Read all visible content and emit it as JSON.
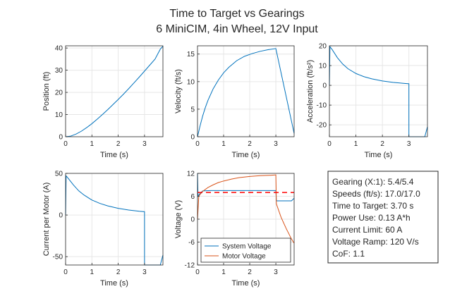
{
  "figure": {
    "title_line1": "Time to Target vs Gearings",
    "title_line2": "6 MiniCIM, 4in Wheel, 12V Input"
  },
  "colors": {
    "series_blue": "#0072BD",
    "series_orange": "#D95319",
    "reference_red": "#FF0000",
    "grid": "#E6E6E6",
    "axis": "#262626"
  },
  "info_box": {
    "lines": [
      "Gearing (X:1): 5.4/5.4",
      "Speeds (ft/s): 17.0/17.0",
      "Time to Target: 3.70 s",
      "Power Use: 0.13 A*h",
      "Current Limit: 60 A",
      "Voltage Ramp: 120 V/s",
      "CoF: 1.1"
    ]
  },
  "chart_data": [
    {
      "id": "position",
      "type": "line",
      "xlabel": "Time (s)",
      "ylabel": "Position (ft)",
      "xlim": [
        0,
        3.7
      ],
      "ylim": [
        0,
        41
      ],
      "xticks": [
        0,
        1,
        2,
        3
      ],
      "yticks": [
        0,
        10,
        20,
        30,
        40
      ],
      "grid": true,
      "series": [
        {
          "color": "series_blue",
          "x": [
            0,
            0.2,
            0.4,
            0.6,
            0.8,
            1.0,
            1.2,
            1.4,
            1.6,
            1.8,
            2.0,
            2.2,
            2.4,
            2.6,
            2.8,
            3.0,
            3.2,
            3.4,
            3.6,
            3.7
          ],
          "y": [
            0,
            0.3,
            1.2,
            2.5,
            4.1,
            5.9,
            7.9,
            10.0,
            12.2,
            14.5,
            16.8,
            19.2,
            21.7,
            24.3,
            26.9,
            29.6,
            32.3,
            35.0,
            39.5,
            40.8
          ]
        }
      ]
    },
    {
      "id": "velocity",
      "type": "line",
      "xlabel": "Time (s)",
      "ylabel": "Velocity (ft/s)",
      "xlim": [
        0,
        3.7
      ],
      "ylim": [
        0,
        16.5
      ],
      "xticks": [
        0,
        1,
        2,
        3
      ],
      "yticks": [
        0,
        5,
        10,
        15
      ],
      "grid": true,
      "series": [
        {
          "color": "series_blue",
          "x": [
            0,
            0.1,
            0.2,
            0.3,
            0.4,
            0.6,
            0.8,
            1.0,
            1.2,
            1.5,
            1.8,
            2.1,
            2.4,
            2.7,
            3.0,
            3.7
          ],
          "y": [
            0,
            2.0,
            3.8,
            5.3,
            6.6,
            8.7,
            10.3,
            11.6,
            12.6,
            13.8,
            14.6,
            15.1,
            15.5,
            15.8,
            16.0,
            0.6
          ]
        }
      ]
    },
    {
      "id": "acceleration",
      "type": "line",
      "xlabel": "Time (s)",
      "ylabel": "Acceleration (ft/s²)",
      "xlim": [
        0,
        3.7
      ],
      "ylim": [
        -26,
        20
      ],
      "xticks": [
        0,
        1,
        2,
        3
      ],
      "yticks": [
        -20,
        -10,
        0,
        10,
        20
      ],
      "grid": true,
      "series": [
        {
          "color": "series_blue",
          "x": [
            0,
            0.02,
            0.1,
            0.3,
            0.5,
            0.7,
            1.0,
            1.3,
            1.6,
            2.0,
            2.4,
            2.8,
            3.0,
            3.0,
            3.1,
            3.6,
            3.7
          ],
          "y": [
            0,
            19.5,
            18.2,
            14.0,
            10.8,
            8.4,
            6.0,
            4.4,
            3.3,
            2.2,
            1.5,
            1.0,
            0.8,
            -26,
            -26,
            -26,
            -21
          ]
        }
      ]
    },
    {
      "id": "current",
      "type": "line",
      "xlabel": "Time (s)",
      "ylabel": "Current per Motor (A)",
      "xlim": [
        0,
        3.7
      ],
      "ylim": [
        -60,
        50
      ],
      "xticks": [
        0,
        1,
        2,
        3
      ],
      "yticks": [
        -50,
        0,
        50
      ],
      "grid": true,
      "series": [
        {
          "color": "series_blue",
          "x": [
            0,
            0.02,
            0.1,
            0.3,
            0.5,
            0.7,
            1.0,
            1.3,
            1.6,
            2.0,
            2.4,
            2.8,
            3.0,
            3.0,
            3.1,
            3.6,
            3.7
          ],
          "y": [
            0,
            47,
            44,
            36,
            29,
            24,
            18,
            14,
            11,
            8,
            6,
            4.5,
            4,
            -60,
            -60,
            -60,
            -48
          ]
        }
      ]
    },
    {
      "id": "voltage",
      "type": "line",
      "xlabel": "Time (s)",
      "ylabel": "Voltage (V)",
      "xlim": [
        0,
        3.7
      ],
      "ylim": [
        -12,
        12
      ],
      "xticks": [
        0,
        1,
        2,
        3
      ],
      "yticks": [
        -12,
        -6,
        0,
        6,
        12
      ],
      "grid": true,
      "legend": {
        "location": "bottom-left",
        "entries": [
          "System Voltage",
          "Motor Voltage"
        ]
      },
      "series": [
        {
          "name": "System Voltage",
          "color": "series_blue",
          "x": [
            0,
            0.02,
            0.1,
            0.2,
            0.5,
            1.0,
            1.5,
            2.0,
            2.5,
            3.0,
            3.02,
            3.1,
            3.6,
            3.7
          ],
          "y": [
            12,
            6.0,
            6.8,
            7.4,
            7.5,
            7.5,
            7.5,
            7.5,
            7.5,
            7.5,
            4.8,
            4.8,
            4.8,
            5.5
          ]
        },
        {
          "name": "Motor Voltage",
          "color": "series_orange",
          "x": [
            0,
            0.05,
            0.1,
            0.2,
            0.4,
            0.6,
            0.8,
            1.0,
            1.3,
            1.6,
            2.0,
            2.4,
            2.8,
            3.0,
            3.02,
            3.2,
            3.4,
            3.6,
            3.7
          ],
          "y": [
            0,
            6.0,
            6.5,
            7.3,
            8.3,
            9.0,
            9.6,
            10.0,
            10.5,
            10.9,
            11.2,
            11.4,
            11.5,
            11.6,
            4.0,
            0.5,
            -2.5,
            -5.2,
            -6.3
          ]
        },
        {
          "color": "reference_red",
          "dashed": true,
          "x": [
            0,
            3.7
          ],
          "y": [
            7,
            7
          ]
        }
      ]
    }
  ]
}
